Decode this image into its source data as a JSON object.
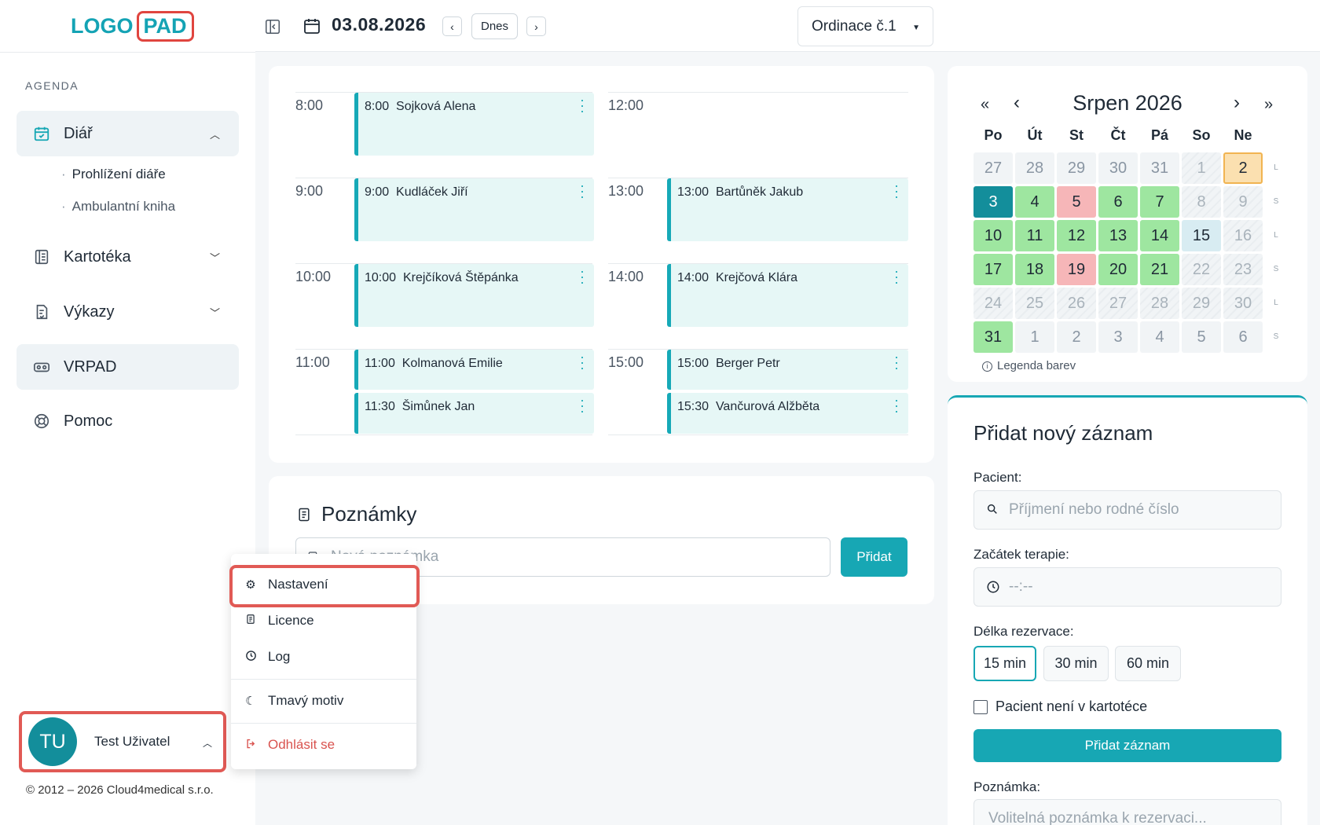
{
  "logo": {
    "part1": "LOGO",
    "part2": "PAD"
  },
  "sidebar": {
    "section_label": "AGENDA",
    "items": [
      {
        "label": "Diář",
        "icon": "calendar-check-icon"
      },
      {
        "label": "Kartotéka",
        "icon": "book-icon"
      },
      {
        "label": "Výkazy",
        "icon": "report-icon"
      },
      {
        "label": "VRPAD",
        "icon": "vr-headset-icon"
      },
      {
        "label": "Pomoc",
        "icon": "lifebuoy-icon"
      }
    ],
    "subitems": [
      {
        "label": "Prohlížení diáře"
      },
      {
        "label": "Ambulantní kniha"
      }
    ]
  },
  "user": {
    "initials": "TU",
    "name": "Test Uživatel"
  },
  "copyright": "© 2012 – 2026 Cloud4medical s.r.o.",
  "topbar": {
    "date": "03.08.2026",
    "today_label": "Dnes",
    "office_select": "Ordinace č.1"
  },
  "schedule": {
    "left": {
      "times": [
        "8:00",
        "9:00",
        "10:00",
        "11:00"
      ],
      "appointments": [
        {
          "time": "8:00",
          "name": "Sojková Alena"
        },
        {
          "time": "9:00",
          "name": "Kudláček Jiří"
        },
        {
          "time": "10:00",
          "name": "Krejčíková Štěpánka"
        },
        {
          "time": "11:00",
          "name": "Kolmanová Emilie"
        },
        {
          "time": "11:30",
          "name": "Šimůnek Jan"
        }
      ]
    },
    "right": {
      "times": [
        "12:00",
        "13:00",
        "14:00",
        "15:00"
      ],
      "appointments": [
        {
          "time": "13:00",
          "name": "Bartůněk Jakub"
        },
        {
          "time": "14:00",
          "name": "Krejčová Klára"
        },
        {
          "time": "15:00",
          "name": "Berger Petr"
        },
        {
          "time": "15:30",
          "name": "Vančurová Alžběta"
        }
      ]
    }
  },
  "notes": {
    "title": "Poznámky",
    "placeholder": "Nová poznámka",
    "add_label": "Přidat"
  },
  "calendar": {
    "title": "Srpen 2026",
    "nav": {
      "prev_year": "«",
      "prev": "‹",
      "next": "›",
      "next_year": "»"
    },
    "weekdays": [
      "Po",
      "Út",
      "St",
      "Čt",
      "Pá",
      "So",
      "Ne"
    ],
    "week_markers": [
      "L",
      "S",
      "L",
      "S",
      "L",
      "S"
    ],
    "weeks": [
      [
        {
          "d": "27",
          "s": "out"
        },
        {
          "d": "28",
          "s": "out"
        },
        {
          "d": "29",
          "s": "out"
        },
        {
          "d": "30",
          "s": "out"
        },
        {
          "d": "31",
          "s": "out"
        },
        {
          "d": "1",
          "s": "hatch"
        },
        {
          "d": "2",
          "s": "orange"
        }
      ],
      [
        {
          "d": "3",
          "s": "today"
        },
        {
          "d": "4",
          "s": "green"
        },
        {
          "d": "5",
          "s": "red"
        },
        {
          "d": "6",
          "s": "green"
        },
        {
          "d": "7",
          "s": "green"
        },
        {
          "d": "8",
          "s": "hatch"
        },
        {
          "d": "9",
          "s": "hatch"
        }
      ],
      [
        {
          "d": "10",
          "s": "green"
        },
        {
          "d": "11",
          "s": "green"
        },
        {
          "d": "12",
          "s": "green"
        },
        {
          "d": "13",
          "s": "green"
        },
        {
          "d": "14",
          "s": "green"
        },
        {
          "d": "15",
          "s": "blue"
        },
        {
          "d": "16",
          "s": "hatch"
        }
      ],
      [
        {
          "d": "17",
          "s": "green"
        },
        {
          "d": "18",
          "s": "green"
        },
        {
          "d": "19",
          "s": "red"
        },
        {
          "d": "20",
          "s": "green"
        },
        {
          "d": "21",
          "s": "green"
        },
        {
          "d": "22",
          "s": "hatch"
        },
        {
          "d": "23",
          "s": "hatch"
        }
      ],
      [
        {
          "d": "24",
          "s": "hatch"
        },
        {
          "d": "25",
          "s": "hatch"
        },
        {
          "d": "26",
          "s": "hatch"
        },
        {
          "d": "27",
          "s": "hatch"
        },
        {
          "d": "28",
          "s": "hatch"
        },
        {
          "d": "29",
          "s": "hatch"
        },
        {
          "d": "30",
          "s": "hatch"
        }
      ],
      [
        {
          "d": "31",
          "s": "green"
        },
        {
          "d": "1",
          "s": "out"
        },
        {
          "d": "2",
          "s": "out"
        },
        {
          "d": "3",
          "s": "out"
        },
        {
          "d": "4",
          "s": "out"
        },
        {
          "d": "5",
          "s": "out"
        },
        {
          "d": "6",
          "s": "out"
        }
      ]
    ],
    "legend": "Legenda barev"
  },
  "add_record": {
    "title": "Přidat nový záznam",
    "patient_label": "Pacient:",
    "patient_placeholder": "Příjmení nebo rodné číslo",
    "start_label": "Začátek terapie:",
    "start_placeholder": "--:--",
    "duration_label": "Délka rezervace:",
    "durations": [
      "15 min",
      "30 min",
      "60 min"
    ],
    "selected_duration": "15 min",
    "not_in_registry_label": "Pacient není v kartotéce",
    "submit_label": "Přidat záznam",
    "note_label": "Poznámka:",
    "note_placeholder": "Volitelná poznámka k rezervaci..."
  },
  "user_menu": {
    "items": [
      {
        "label": "Nastavení",
        "icon": "gear-icon"
      },
      {
        "label": "Licence",
        "icon": "document-icon"
      },
      {
        "label": "Log",
        "icon": "clock-icon"
      },
      {
        "label": "Tmavý motiv",
        "icon": "moon-icon"
      },
      {
        "label": "Odhlásit se",
        "icon": "logout-icon"
      }
    ]
  },
  "colors": {
    "accent": "#17a7b4",
    "highlight": "#e15a55",
    "danger": "#d9534f"
  }
}
